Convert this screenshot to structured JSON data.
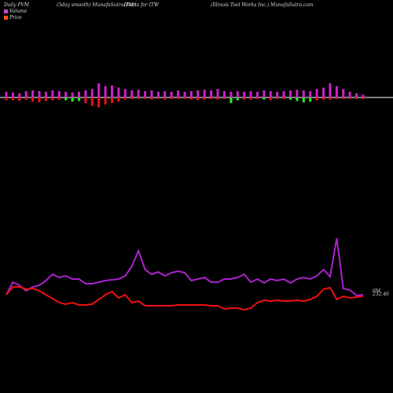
{
  "header": {
    "left": "Daily PVM",
    "mid1": "(5day smooth) MunafaSutra(TM)",
    "mid2": "charts for ITW",
    "right": "(Illinois Tool Works Inc.) MunafaSutra.com"
  },
  "legend": {
    "volume_label": "Volume",
    "price_label": "Price",
    "volume_color": "#cc44cc",
    "price_color": "#ff5500"
  },
  "chart_data": {
    "type": "line",
    "title": "",
    "grid": false,
    "colors": {
      "volume_up": "#cc22cc",
      "volume_down_red": "#ee1111",
      "volume_down_green": "#22ee22",
      "pvm_line": "#aa22cc",
      "price_line": "#ee1111"
    },
    "volume_bars": {
      "up": [
        8,
        7,
        6,
        9,
        10,
        9,
        8,
        10,
        9,
        8,
        7,
        8,
        10,
        12,
        20,
        16,
        17,
        14,
        12,
        10,
        11,
        9,
        10,
        8,
        9,
        8,
        10,
        8,
        9,
        10,
        11,
        10,
        12,
        9,
        8,
        9,
        8,
        9,
        8,
        10,
        9,
        8,
        9,
        10,
        11,
        10,
        9,
        12,
        14,
        20,
        16,
        12,
        8,
        6,
        4
      ],
      "down": [
        -4,
        -4,
        -5,
        -3,
        -6,
        -7,
        -5,
        -4,
        -3,
        -4,
        -6,
        -5,
        -8,
        -12,
        -14,
        -10,
        -8,
        -6,
        -3,
        -2,
        -2,
        -2,
        -3,
        -2,
        -3,
        -2,
        -2,
        -2,
        -3,
        -4,
        -3,
        -2,
        -3,
        -2,
        -8,
        -4,
        -3,
        -3,
        -2,
        -3,
        -4,
        -2,
        -2,
        -3,
        -5,
        -7,
        -6,
        -4,
        -3,
        -3,
        -2,
        -2,
        -2,
        -2,
        -2
      ],
      "down_color": [
        "r",
        "r",
        "r",
        "r",
        "r",
        "r",
        "r",
        "r",
        "r",
        "g",
        "g",
        "g",
        "r",
        "r",
        "r",
        "r",
        "r",
        "r",
        "r",
        "r",
        "r",
        "r",
        "r",
        "r",
        "r",
        "r",
        "r",
        "r",
        "r",
        "r",
        "r",
        "r",
        "r",
        "r",
        "g",
        "g",
        "r",
        "r",
        "r",
        "g",
        "r",
        "r",
        "r",
        "g",
        "g",
        "g",
        "g",
        "r",
        "r",
        "r",
        "r",
        "r",
        "r",
        "r",
        "r"
      ]
    },
    "pvm_line": [
      50,
      66,
      62,
      55,
      60,
      62,
      68,
      76,
      72,
      74,
      70,
      70,
      64,
      64,
      66,
      68,
      69,
      70,
      74,
      86,
      106,
      82,
      76,
      79,
      74,
      78,
      80,
      78,
      68,
      70,
      72,
      66,
      66,
      70,
      70,
      72,
      76,
      66,
      70,
      65,
      70,
      68,
      70,
      65,
      70,
      72,
      70,
      74,
      82,
      73,
      122,
      58,
      56,
      49,
      50
    ],
    "price_line": [
      50,
      60,
      60,
      57,
      58,
      55,
      50,
      45,
      40,
      38,
      40,
      37,
      37,
      38,
      44,
      50,
      54,
      46,
      50,
      40,
      42,
      36,
      36,
      36,
      36,
      36,
      37,
      37,
      37,
      37,
      37,
      36,
      36,
      32,
      33,
      33,
      31,
      33,
      40,
      43,
      42,
      43,
      42,
      42,
      43,
      42,
      44,
      48,
      57,
      59,
      44,
      48,
      46,
      47,
      48
    ],
    "end_labels": {
      "pvm": "0M",
      "price": "232.46"
    }
  }
}
